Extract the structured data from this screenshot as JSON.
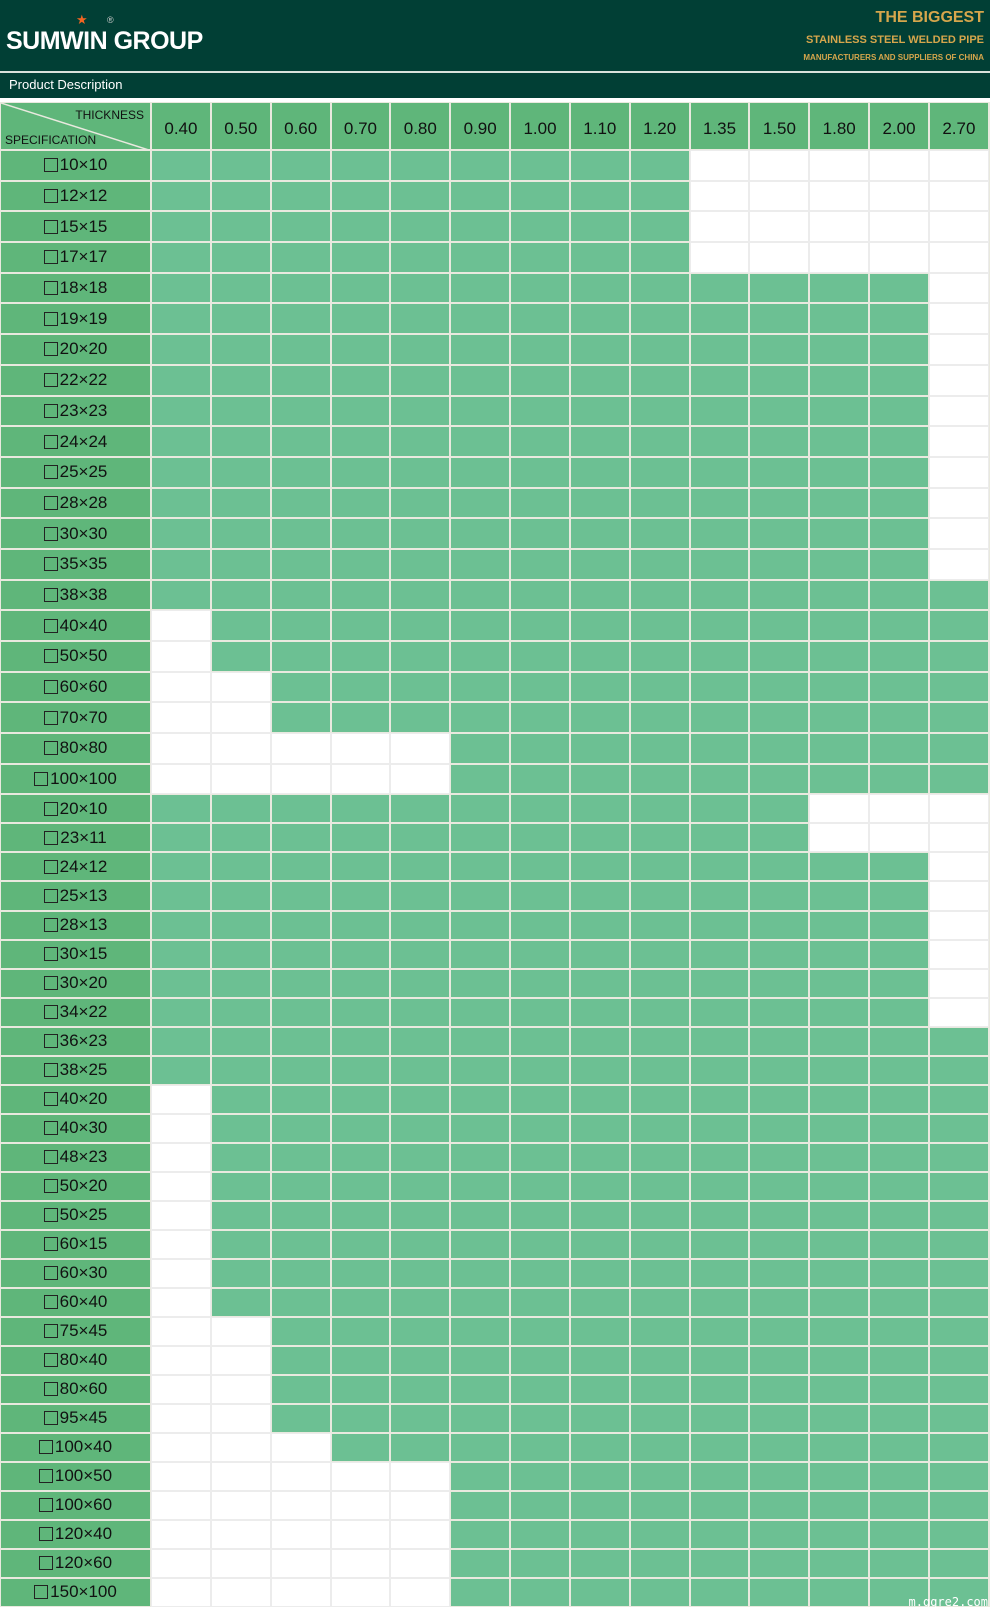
{
  "header": {
    "logo": "SUMWIN GROUP",
    "tagline_1": "THE BIGGEST",
    "tagline_2": "STAINLESS STEEL WELDED PIPE",
    "tagline_3": "MANUFACTURERS AND SUPPLIERS OF CHINA"
  },
  "section_title": "Product Description",
  "table": {
    "corner_top": "THICKNESS",
    "corner_bottom": "SPECIFICATION",
    "thicknesses": [
      "0.40",
      "0.50",
      "0.60",
      "0.70",
      "0.80",
      "0.90",
      "1.00",
      "1.10",
      "1.20",
      "1.35",
      "1.50",
      "1.80",
      "2.00",
      "2.70"
    ],
    "blocks": [
      {
        "rows": [
          {
            "spec": "10×10",
            "available": [
              "0.40",
              "1.20"
            ]
          },
          {
            "spec": "12×12",
            "available": [
              "0.40",
              "1.20"
            ]
          },
          {
            "spec": "15×15",
            "available": [
              "0.40",
              "1.20"
            ]
          },
          {
            "spec": "17×17",
            "available": [
              "0.40",
              "1.20"
            ]
          },
          {
            "spec": "18×18",
            "available": [
              "0.40",
              "2.00"
            ]
          },
          {
            "spec": "19×19",
            "available": [
              "0.40",
              "2.00"
            ]
          },
          {
            "spec": "20×20",
            "available": [
              "0.40",
              "2.00"
            ]
          },
          {
            "spec": "22×22",
            "available": [
              "0.40",
              "2.00"
            ]
          },
          {
            "spec": "23×23",
            "available": [
              "0.40",
              "2.00"
            ]
          },
          {
            "spec": "24×24",
            "available": [
              "0.40",
              "2.00"
            ]
          },
          {
            "spec": "25×25",
            "available": [
              "0.40",
              "2.00"
            ]
          },
          {
            "spec": "28×28",
            "available": [
              "0.40",
              "2.00"
            ]
          },
          {
            "spec": "30×30",
            "available": [
              "0.40",
              "2.00"
            ]
          },
          {
            "spec": "35×35",
            "available": [
              "0.40",
              "2.00"
            ]
          },
          {
            "spec": "38×38",
            "available": [
              "0.40",
              "2.70"
            ]
          },
          {
            "spec": "40×40",
            "available": [
              "0.50",
              "2.70"
            ]
          },
          {
            "spec": "50×50",
            "available": [
              "0.50",
              "2.70"
            ]
          },
          {
            "spec": "60×60",
            "available": [
              "0.60",
              "2.70"
            ]
          },
          {
            "spec": "70×70",
            "available": [
              "0.60",
              "2.70"
            ]
          },
          {
            "spec": "80×80",
            "available": [
              "0.90",
              "2.70"
            ]
          },
          {
            "spec": "100×100",
            "available": [
              "0.90",
              "2.70"
            ]
          }
        ]
      },
      {
        "rows": [
          {
            "spec": "20×10",
            "available": [
              "0.40",
              "1.50"
            ]
          },
          {
            "spec": "23×11",
            "available": [
              "0.40",
              "1.50"
            ]
          },
          {
            "spec": "24×12",
            "available": [
              "0.40",
              "2.00"
            ]
          },
          {
            "spec": "25×13",
            "available": [
              "0.40",
              "2.00"
            ]
          },
          {
            "spec": "28×13",
            "available": [
              "0.40",
              "2.00"
            ]
          },
          {
            "spec": "30×15",
            "available": [
              "0.40",
              "2.00"
            ]
          },
          {
            "spec": "30×20",
            "available": [
              "0.40",
              "2.00"
            ]
          },
          {
            "spec": "34×22",
            "available": [
              "0.40",
              "2.00"
            ]
          },
          {
            "spec": "36×23",
            "available": [
              "0.40",
              "2.70"
            ]
          },
          {
            "spec": "38×25",
            "available": [
              "0.40",
              "2.70"
            ]
          },
          {
            "spec": "40×20",
            "available": [
              "0.50",
              "2.70"
            ]
          },
          {
            "spec": "40×30",
            "available": [
              "0.50",
              "2.70"
            ]
          },
          {
            "spec": "48×23",
            "available": [
              "0.50",
              "2.70"
            ]
          },
          {
            "spec": "50×20",
            "available": [
              "0.50",
              "2.70"
            ]
          },
          {
            "spec": "50×25",
            "available": [
              "0.50",
              "2.70"
            ]
          },
          {
            "spec": "60×15",
            "available": [
              "0.50",
              "2.70"
            ]
          },
          {
            "spec": "60×30",
            "available": [
              "0.50",
              "2.70"
            ]
          },
          {
            "spec": "60×40",
            "available": [
              "0.50",
              "2.70"
            ]
          },
          {
            "spec": "75×45",
            "available": [
              "0.60",
              "2.70"
            ]
          },
          {
            "spec": "80×40",
            "available": [
              "0.60",
              "2.70"
            ]
          },
          {
            "spec": "80×60",
            "available": [
              "0.60",
              "2.70"
            ]
          },
          {
            "spec": "95×45",
            "available": [
              "0.60",
              "2.70"
            ]
          },
          {
            "spec": "100×40",
            "available": [
              "0.70",
              "2.70"
            ]
          },
          {
            "spec": "100×50",
            "available": [
              "0.90",
              "2.70"
            ]
          },
          {
            "spec": "100×60",
            "available": [
              "0.90",
              "2.70"
            ]
          },
          {
            "spec": "120×40",
            "available": [
              "0.90",
              "2.70"
            ]
          },
          {
            "spec": "120×60",
            "available": [
              "0.90",
              "2.70"
            ]
          },
          {
            "spec": "150×100",
            "available": [
              "0.90",
              "2.70"
            ]
          }
        ]
      }
    ]
  },
  "colors": {
    "header_bg": "#013f35",
    "gold": "#d6a64c",
    "available": "#6cc093",
    "header_cell": "#5fb67a",
    "unavailable": "#ffffff"
  },
  "watermark": "m.ggre2.com"
}
